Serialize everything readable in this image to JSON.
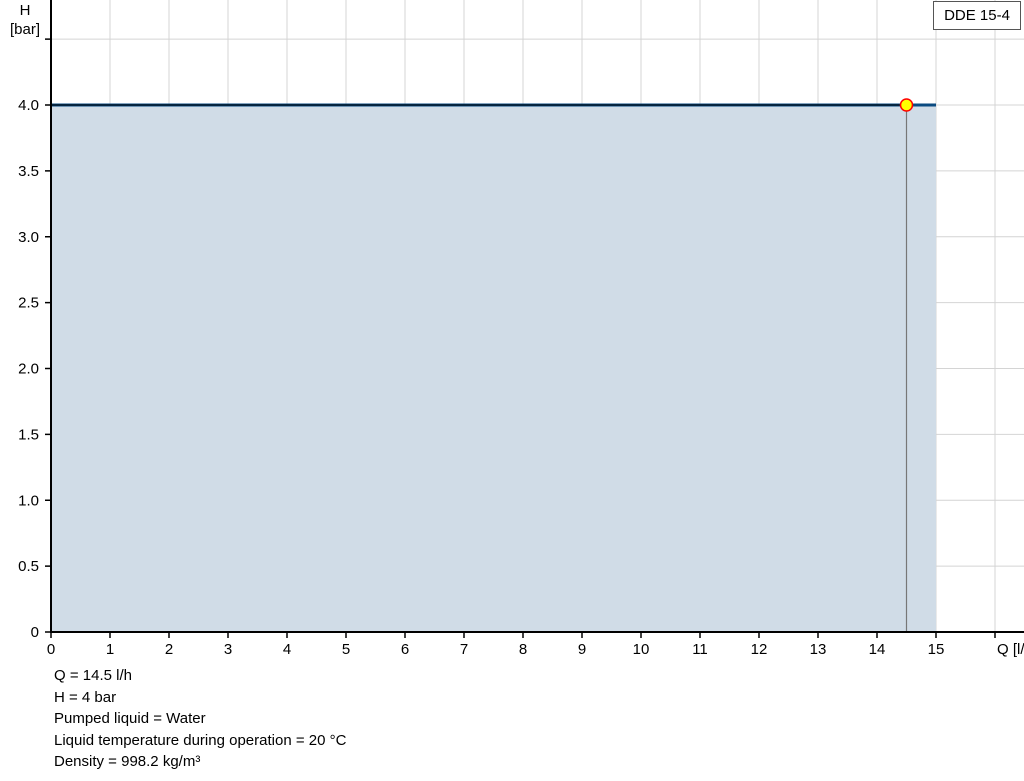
{
  "chart_data": {
    "type": "area",
    "xlabel": "Q [l/h]",
    "ylabel": "H",
    "ylabel_unit": "[bar]",
    "xlim": [
      0,
      16.5
    ],
    "ylim": [
      0,
      4.5
    ],
    "x_ticks": [
      "0",
      "1",
      "2",
      "3",
      "4",
      "5",
      "6",
      "7",
      "8",
      "9",
      "10",
      "11",
      "12",
      "13",
      "14",
      "15"
    ],
    "y_ticks": [
      "0",
      "0.5",
      "1.0",
      "1.5",
      "2.0",
      "2.5",
      "3.0",
      "3.5",
      "4.0"
    ],
    "grid": true,
    "legend": "top-right",
    "series": [
      {
        "name": "DDE 15-4",
        "x": [
          0,
          15
        ],
        "y": [
          4,
          4
        ],
        "color": "#0a4a80",
        "fill": "#d0dce7"
      }
    ],
    "operating_point": {
      "x": 14.5,
      "y": 4,
      "fill": "#ffff00",
      "stroke": "#ff0000"
    }
  },
  "info": [
    "Q = 14.5 l/h",
    "H = 4 bar",
    "Pumped liquid = Water",
    "Liquid temperature during operation = 20 °C",
    "Density = 998.2 kg/m³"
  ]
}
